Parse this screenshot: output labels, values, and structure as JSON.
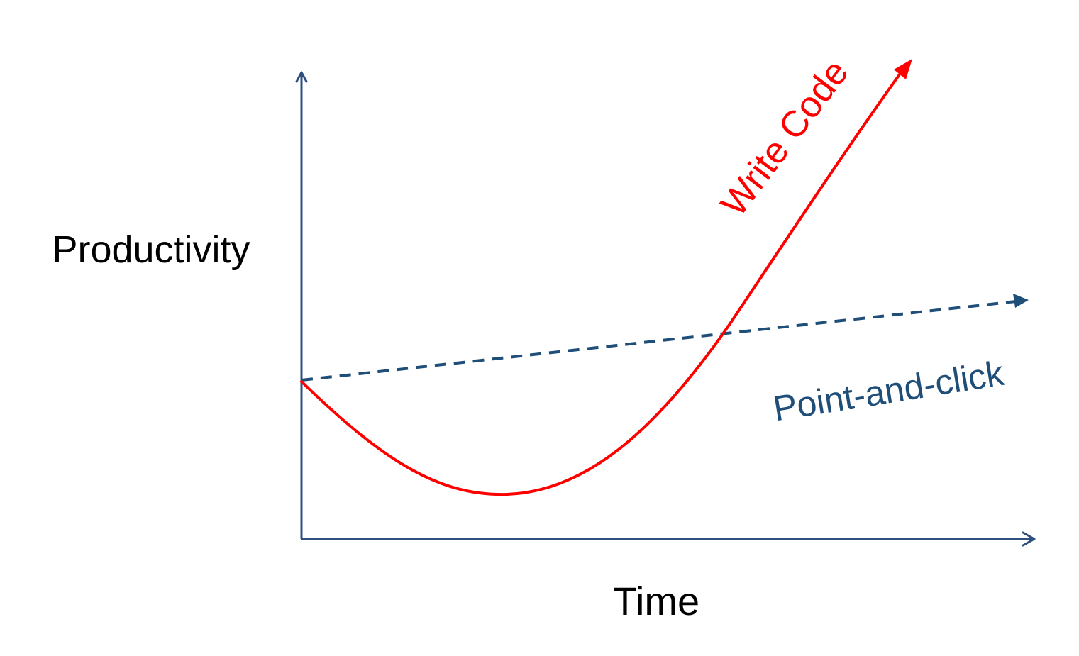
{
  "axes": {
    "y_label": "Productivity",
    "x_label": "Time"
  },
  "curves": {
    "write_code": {
      "label": "Write Code",
      "color": "#ff0000",
      "style": "solid"
    },
    "point_and_click": {
      "label": "Point-and-click",
      "color": "#1f4e79",
      "style": "dashed"
    }
  },
  "colors": {
    "axis": "#2f4f7f",
    "axis_label_text": "#000000"
  }
}
